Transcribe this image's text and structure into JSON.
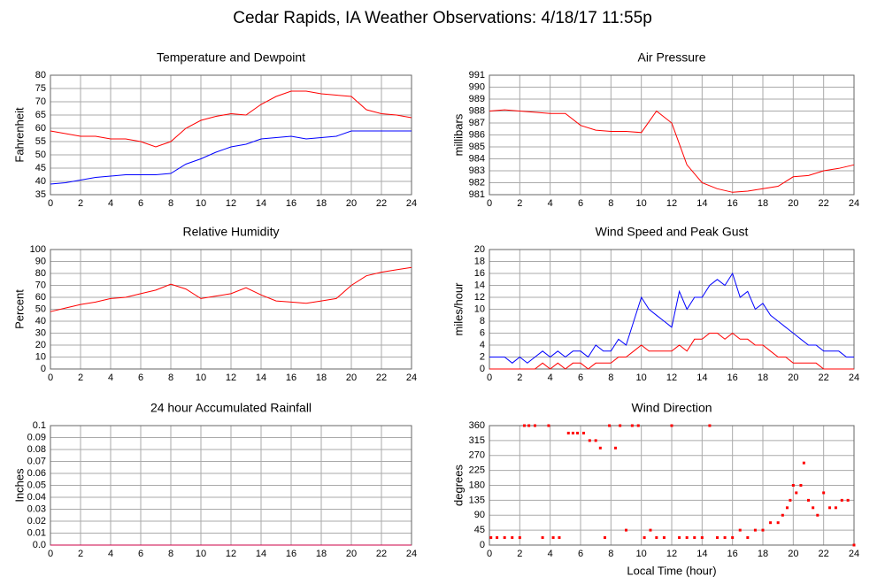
{
  "title": "Cedar Rapids, IA Weather Observations: 4/18/17 11:55p",
  "chart_data": [
    {
      "type": "line",
      "title": "Temperature and Dewpoint",
      "ylabel": "Fahrenheit",
      "x": [
        0,
        1,
        2,
        3,
        4,
        5,
        6,
        7,
        8,
        9,
        10,
        11,
        12,
        13,
        14,
        15,
        16,
        17,
        18,
        19,
        20,
        21,
        22,
        23,
        24
      ],
      "series": [
        {
          "name": "Temperature",
          "color": "#ff0000",
          "values": [
            59,
            58,
            57,
            57,
            56,
            56,
            55,
            53,
            55,
            60,
            63,
            64.5,
            65.5,
            65,
            69,
            72,
            74,
            74,
            73,
            72.5,
            72,
            67,
            65.5,
            65,
            64
          ]
        },
        {
          "name": "Dewpoint",
          "color": "#0000ff",
          "values": [
            39,
            39.5,
            40.5,
            41.5,
            42,
            42.5,
            42.5,
            42.5,
            43,
            46.5,
            48.5,
            51,
            53,
            54,
            56,
            56.5,
            57,
            56,
            56.5,
            57,
            59,
            59,
            59,
            59,
            59
          ]
        }
      ],
      "xlim": [
        0,
        24
      ],
      "xticks": [
        0,
        2,
        4,
        6,
        8,
        10,
        12,
        14,
        16,
        18,
        20,
        22,
        24
      ],
      "ylim": [
        35,
        80
      ],
      "yticks": [
        35,
        40,
        45,
        50,
        55,
        60,
        65,
        70,
        75,
        80
      ],
      "grid": true
    },
    {
      "type": "line",
      "title": "Air Pressure",
      "ylabel": "millibars",
      "x": [
        0,
        1,
        2,
        3,
        4,
        5,
        6,
        7,
        8,
        9,
        10,
        11,
        12,
        13,
        14,
        15,
        16,
        17,
        18,
        19,
        20,
        21,
        22,
        23,
        24
      ],
      "series": [
        {
          "name": "Pressure",
          "color": "#ff0000",
          "values": [
            988,
            988.1,
            988,
            987.9,
            987.8,
            987.8,
            986.8,
            986.4,
            986.3,
            986.3,
            986.2,
            988,
            987,
            983.5,
            982,
            981.5,
            981.2,
            981.3,
            981.5,
            981.7,
            982.5,
            982.6,
            983,
            983.2,
            983.5
          ]
        }
      ],
      "xlim": [
        0,
        24
      ],
      "xticks": [
        0,
        2,
        4,
        6,
        8,
        10,
        12,
        14,
        16,
        18,
        20,
        22,
        24
      ],
      "ylim": [
        981,
        991
      ],
      "yticks": [
        981,
        982,
        983,
        984,
        985,
        986,
        987,
        988,
        989,
        990,
        991
      ],
      "grid": true
    },
    {
      "type": "line",
      "title": "Relative Humidity",
      "ylabel": "Percent",
      "x": [
        0,
        1,
        2,
        3,
        4,
        5,
        6,
        7,
        8,
        9,
        10,
        11,
        12,
        13,
        14,
        15,
        16,
        17,
        18,
        19,
        20,
        21,
        22,
        23,
        24
      ],
      "series": [
        {
          "name": "Humidity",
          "color": "#ff0000",
          "values": [
            48,
            51,
            54,
            56,
            59,
            60,
            63,
            66,
            71,
            67,
            59,
            61,
            63,
            68,
            62,
            57,
            56,
            55,
            57,
            59,
            70,
            78,
            81,
            83,
            85
          ]
        }
      ],
      "xlim": [
        0,
        24
      ],
      "xticks": [
        0,
        2,
        4,
        6,
        8,
        10,
        12,
        14,
        16,
        18,
        20,
        22,
        24
      ],
      "ylim": [
        0,
        100
      ],
      "yticks": [
        0,
        10,
        20,
        30,
        40,
        50,
        60,
        70,
        80,
        90,
        100
      ],
      "grid": true
    },
    {
      "type": "line",
      "title": "Wind Speed and Peak Gust",
      "ylabel": "miles/hour",
      "x": [
        0,
        0.5,
        1,
        1.5,
        2,
        2.5,
        3,
        3.5,
        4,
        4.5,
        5,
        5.5,
        6,
        6.5,
        7,
        7.5,
        8,
        8.5,
        9,
        9.5,
        10,
        10.5,
        11,
        11.5,
        12,
        12.5,
        13,
        13.5,
        14,
        14.5,
        15,
        15.5,
        16,
        16.5,
        17,
        17.5,
        18,
        18.5,
        19,
        19.5,
        20,
        20.5,
        21,
        21.5,
        22,
        22.5,
        23,
        23.5,
        24
      ],
      "series": [
        {
          "name": "Peak Gust",
          "color": "#0000ff",
          "values": [
            2,
            2,
            2,
            1,
            2,
            1,
            2,
            3,
            2,
            3,
            2,
            3,
            3,
            2,
            4,
            3,
            3,
            5,
            4,
            8,
            12,
            10,
            9,
            8,
            7,
            13,
            10,
            12,
            12,
            14,
            15,
            14,
            16,
            12,
            13,
            10,
            11,
            9,
            8,
            7,
            6,
            5,
            4,
            4,
            3,
            3,
            3,
            2,
            2
          ]
        },
        {
          "name": "Wind Speed",
          "color": "#ff0000",
          "values": [
            0,
            0,
            0,
            0,
            0,
            0,
            0,
            1,
            0,
            1,
            0,
            1,
            1,
            0,
            1,
            1,
            1,
            2,
            2,
            3,
            4,
            3,
            3,
            3,
            3,
            4,
            3,
            5,
            5,
            6,
            6,
            5,
            6,
            5,
            5,
            4,
            4,
            3,
            2,
            2,
            1,
            1,
            1,
            1,
            0,
            0,
            0,
            0,
            0
          ]
        }
      ],
      "xlim": [
        0,
        24
      ],
      "xticks": [
        0,
        2,
        4,
        6,
        8,
        10,
        12,
        14,
        16,
        18,
        20,
        22,
        24
      ],
      "ylim": [
        0,
        20
      ],
      "yticks": [
        0,
        2,
        4,
        6,
        8,
        10,
        12,
        14,
        16,
        18,
        20
      ],
      "grid": true
    },
    {
      "type": "line",
      "title": "24 hour Accumulated Rainfall",
      "ylabel": "Inches",
      "x": [
        0,
        1,
        2,
        3,
        4,
        5,
        6,
        7,
        8,
        9,
        10,
        11,
        12,
        13,
        14,
        15,
        16,
        17,
        18,
        19,
        20,
        21,
        22,
        23,
        24
      ],
      "series": [
        {
          "name": "Rainfall",
          "color": "#cc0044",
          "values": [
            0,
            0,
            0,
            0,
            0,
            0,
            0,
            0,
            0,
            0,
            0,
            0,
            0,
            0,
            0,
            0,
            0,
            0,
            0,
            0,
            0,
            0,
            0,
            0,
            0
          ]
        }
      ],
      "xlim": [
        0,
        24
      ],
      "xticks": [
        0,
        2,
        4,
        6,
        8,
        10,
        12,
        14,
        16,
        18,
        20,
        22,
        24
      ],
      "ylim": [
        0,
        0.1
      ],
      "yticks": [
        {
          "value": 0,
          "label": "0.0"
        },
        0.01,
        0.02,
        0.03,
        0.04,
        0.05,
        0.06,
        0.07,
        0.08,
        0.09,
        0.1
      ],
      "grid": true
    },
    {
      "type": "scatter",
      "title": "Wind Direction",
      "ylabel": "degrees",
      "xlabel": "Local Time (hour)",
      "x": [
        0.1,
        0.5,
        1,
        1.5,
        2,
        2.3,
        2.6,
        3,
        3.5,
        3.9,
        4.2,
        4.6,
        5.2,
        5.5,
        5.8,
        6.2,
        6.6,
        7,
        7.3,
        7.6,
        7.9,
        8.3,
        8.6,
        9,
        9.4,
        9.8,
        10.2,
        10.6,
        11,
        11.5,
        12,
        12.5,
        13,
        13.5,
        14,
        14.5,
        15,
        15.5,
        16,
        16.5,
        17,
        17.5,
        18,
        18.5,
        19,
        19.3,
        19.6,
        19.8,
        20,
        20.2,
        20.5,
        20.7,
        21,
        21.3,
        21.6,
        22,
        22.4,
        22.8,
        23.2,
        23.6,
        24
      ],
      "series": [
        {
          "name": "Direction",
          "color": "#ff0000",
          "values": [
            22.5,
            22.5,
            22.5,
            22.5,
            22.5,
            360,
            360,
            360,
            22.5,
            360,
            22.5,
            22.5,
            337.5,
            337.5,
            337.5,
            337.5,
            315,
            315,
            292.5,
            22.5,
            360,
            292.5,
            360,
            45,
            360,
            360,
            22.5,
            45,
            22.5,
            22.5,
            360,
            22.5,
            22.5,
            22.5,
            22.5,
            360,
            22.5,
            22.5,
            22.5,
            45,
            22.5,
            45,
            45,
            67.5,
            67.5,
            90,
            112.5,
            135,
            180,
            157.5,
            180,
            247.5,
            135,
            112.5,
            90,
            157.5,
            112.5,
            112.5,
            135,
            135,
            0
          ]
        }
      ],
      "xlim": [
        0,
        24
      ],
      "xticks": [
        0,
        2,
        4,
        6,
        8,
        10,
        12,
        14,
        16,
        18,
        20,
        22,
        24
      ],
      "ylim": [
        0,
        360
      ],
      "yticks": [
        0,
        45,
        90,
        135,
        180,
        225,
        270,
        315,
        360
      ],
      "grid": true
    }
  ]
}
